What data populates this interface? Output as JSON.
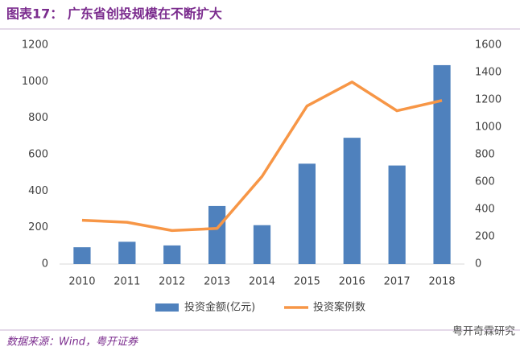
{
  "chart_data": {
    "type": "bar-line",
    "title": "图表17： 广东省创投规模在不断扩大",
    "source": "数据来源：Wind，粤开证券",
    "watermark": "粤开奇霖研究",
    "categories": [
      "2010",
      "2011",
      "2012",
      "2013",
      "2014",
      "2015",
      "2016",
      "2017",
      "2018"
    ],
    "series": [
      {
        "name": "投资金额(亿元)",
        "type": "bar",
        "color": "#4f81bd",
        "axis": "y",
        "values": [
          92,
          122,
          102,
          318,
          213,
          550,
          692,
          540,
          1090
        ]
      },
      {
        "name": "投资案例数",
        "type": "line",
        "color": "#f79646",
        "axis": "y2",
        "values": [
          320,
          305,
          245,
          260,
          640,
          1155,
          1330,
          1120,
          1195
        ]
      }
    ],
    "ylim": [
      0,
      1200
    ],
    "yticks": [
      0,
      200,
      400,
      600,
      800,
      1000,
      1200
    ],
    "y2lim": [
      0,
      1600
    ],
    "y2ticks": [
      0,
      200,
      400,
      600,
      800,
      1000,
      1200,
      1400,
      1600
    ],
    "legend": "bottom"
  }
}
